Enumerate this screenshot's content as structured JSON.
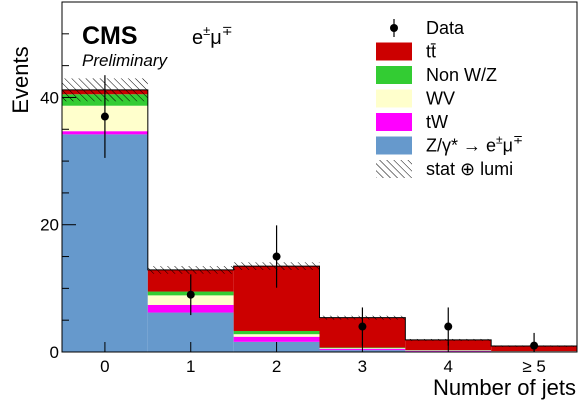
{
  "chart_data": {
    "type": "bar",
    "stacked": true,
    "xlabel": "Number of jets",
    "ylabel": "Events",
    "ylim": [
      0,
      55
    ],
    "yticks": [
      0,
      20,
      40
    ],
    "categories": [
      "0",
      "1",
      "2",
      "3",
      "4",
      "≥ 5"
    ],
    "experiment": "CMS",
    "status": "Preliminary",
    "channel_base": "e",
    "channel_sup": "±",
    "channel_mid": "μ",
    "channel_sup2": "∓",
    "series": [
      {
        "name": "Z/γ* → e",
        "name_sup": "±",
        "name_mid": "μ",
        "name_sup2": "∓",
        "color": "#6699cc",
        "values": [
          34.2,
          6.2,
          1.6,
          0.3,
          0.1,
          0.05
        ]
      },
      {
        "name": "tW",
        "color": "#ff00ff",
        "values": [
          0.5,
          1.2,
          0.8,
          0.2,
          0.1,
          0.05
        ]
      },
      {
        "name": "WV",
        "color": "#ffffcc",
        "values": [
          4.0,
          1.5,
          0.4,
          0.1,
          0.05,
          0.02
        ]
      },
      {
        "name": "Non W/Z",
        "color": "#33cc33",
        "values": [
          1.8,
          0.6,
          0.5,
          0.1,
          0.05,
          0.02
        ]
      },
      {
        "name": "tt̄",
        "color": "#cc0000",
        "values": [
          0.7,
          3.4,
          10.2,
          4.7,
          1.6,
          0.8
        ]
      }
    ],
    "uncertainty": {
      "name": "stat ⊕ lumi",
      "values": [
        1.8,
        0.6,
        0.6,
        0.3,
        0.15,
        0.1
      ]
    },
    "data": {
      "name": "Data",
      "values": [
        37,
        9,
        15,
        4,
        4,
        1
      ],
      "errors": [
        6.5,
        3.2,
        4.9,
        3.0,
        3.0,
        2.0
      ]
    },
    "legend_order": [
      "Data",
      "tt̄",
      "Non W/Z",
      "WV",
      "tW",
      "Z/γ* → e±μ∓",
      "stat ⊕ lumi"
    ],
    "legend_placement": "top-right"
  }
}
